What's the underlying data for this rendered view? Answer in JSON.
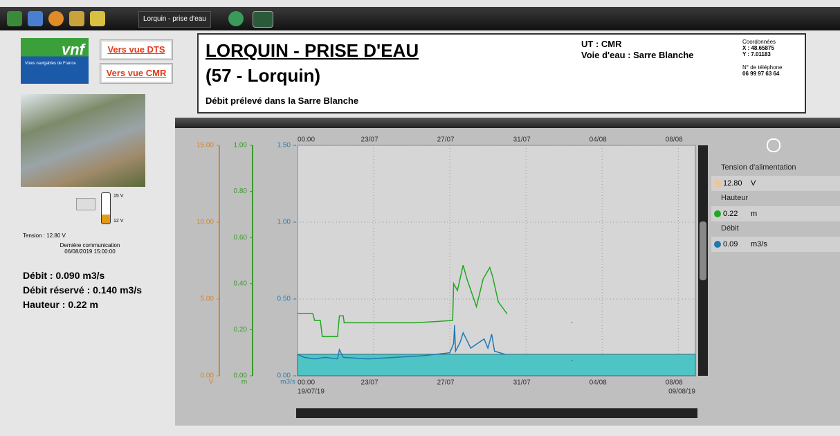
{
  "toolbar": {
    "title": "Lorquin - prise d'eau"
  },
  "logo": {
    "text": "vnf",
    "subtitle": "Voies navigables de France"
  },
  "buttons": [
    "Vers vue DTS",
    "Vers vue CMR"
  ],
  "header": {
    "title": "LORQUIN - PRISE D'EAU",
    "subtitle": "(57 - Lorquin)",
    "description": "Débit prélevé dans la Sarre Blanche",
    "ut": "UT : CMR",
    "waterway": "Voie d'eau : Sarre Blanche",
    "coords_title": "Coordonnées",
    "coord_x": "X : 48.65875",
    "coord_y": "Y : 7.01183",
    "phone_title": "N° de téléphone",
    "phone": "06 99 97 63 64"
  },
  "status": {
    "battery_high": "15 V",
    "battery_low": "12 V",
    "tension": "Tension : 12.80 V",
    "last_comm_title": "Dernière communication",
    "last_comm": "06/08/2019 15:00:00",
    "flow": "Débit : 0.090 m3/s",
    "reserved_flow": "Débit réservé : 0.140 m3/s",
    "height": "Hauteur : 0.22 m"
  },
  "side_panel": {
    "entries": [
      {
        "label": "Tension d'alimentation",
        "value": "12.80",
        "unit": "V",
        "color": "#e6c7a6"
      },
      {
        "label": "Hauteur",
        "value": "0.22",
        "unit": "m",
        "color": "#1fa81f"
      },
      {
        "label": "Débit",
        "value": "0.09",
        "unit": "m3/s",
        "color": "#1f78b4"
      }
    ]
  },
  "chart_data": {
    "type": "line",
    "grid": true,
    "xlim": [
      0,
      20.9
    ],
    "xticks": [
      {
        "value": 0,
        "label": "00:00"
      },
      {
        "value": 4,
        "label": "23/07"
      },
      {
        "value": 8,
        "label": "27/07"
      },
      {
        "value": 12,
        "label": "31/07"
      },
      {
        "value": 16,
        "label": "04/08"
      },
      {
        "value": 20,
        "label": "08/08"
      }
    ],
    "x_range_labels": [
      "19/07/19",
      "09/08/19"
    ],
    "y_axes": [
      {
        "unit": "V",
        "color": "#d9822b",
        "ylim": [
          0,
          15
        ],
        "yticks": [
          {
            "value": 0,
            "label": "0.00"
          },
          {
            "value": 5,
            "label": "5.00"
          },
          {
            "value": 10,
            "label": "10.00"
          },
          {
            "value": 15,
            "label": "15.00"
          }
        ]
      },
      {
        "unit": "m",
        "color": "#3a9a2a",
        "ylim": [
          0,
          1
        ],
        "yticks": [
          {
            "value": 0,
            "label": "0.00"
          },
          {
            "value": 0.2,
            "label": "0.20"
          },
          {
            "value": 0.4,
            "label": "0.40"
          },
          {
            "value": 0.6,
            "label": "0.60"
          },
          {
            "value": 0.8,
            "label": "0.80"
          },
          {
            "value": 1,
            "label": "1.00"
          }
        ]
      },
      {
        "unit": "m3/s",
        "color": "#2a7fb0",
        "ylim": [
          0,
          1.5
        ],
        "yticks": [
          {
            "value": 0,
            "label": "0.00"
          },
          {
            "value": 0.5,
            "label": "0.50"
          },
          {
            "value": 1,
            "label": "1.00"
          },
          {
            "value": 1.5,
            "label": "1.50"
          }
        ]
      }
    ],
    "reserved_flow": {
      "value": 0.14,
      "axis": 2,
      "color": "#4fc4c4"
    },
    "series": [
      {
        "name": "Hauteur",
        "color": "#1fa81f",
        "axis": 1,
        "x": [
          0,
          0.8,
          0.9,
          1.2,
          1.3,
          2.1,
          2.2,
          2.4,
          2.45,
          4.7,
          6.2,
          8.15,
          8.2,
          8.4,
          8.7,
          8.9,
          9.4,
          9.75,
          10.1,
          10.25,
          10.55,
          11.0,
          null,
          14.4
        ],
        "values": [
          0.27,
          0.27,
          0.24,
          0.24,
          0.17,
          0.17,
          0.26,
          0.26,
          0.23,
          0.23,
          0.23,
          0.24,
          0.4,
          0.37,
          0.48,
          0.42,
          0.3,
          0.42,
          0.47,
          0.43,
          0.32,
          0.27,
          null,
          0.23
        ]
      },
      {
        "name": "Débit",
        "color": "#1f78b4",
        "axis": 2,
        "x": [
          0,
          0.35,
          0.9,
          1.45,
          2.1,
          2.2,
          2.4,
          3.7,
          5.1,
          6.55,
          8.0,
          8.2,
          8.25,
          8.3,
          8.55,
          8.7,
          9.1,
          9.45,
          9.8,
          10.0,
          10.2,
          10.35,
          10.9,
          null,
          14.4
        ],
        "values": [
          0.14,
          0.12,
          0.11,
          0.12,
          0.11,
          0.17,
          0.12,
          0.11,
          0.12,
          0.13,
          0.15,
          0.21,
          0.33,
          0.16,
          0.22,
          0.28,
          0.18,
          0.21,
          0.24,
          0.18,
          0.27,
          0.16,
          0.14,
          null,
          0.1
        ]
      }
    ]
  }
}
